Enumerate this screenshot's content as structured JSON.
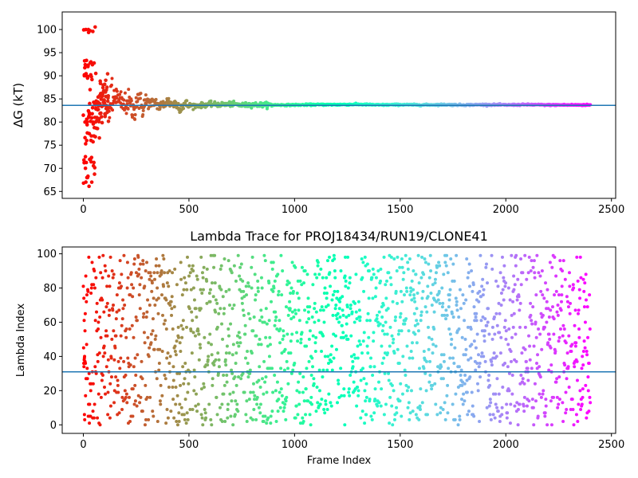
{
  "chart_data": [
    {
      "type": "scatter",
      "title": "",
      "xlabel": "",
      "ylabel": "ΔG (kT)",
      "xlim": [
        -100,
        2520
      ],
      "ylim": [
        63.5,
        103.8
      ],
      "xticks": [
        0,
        500,
        1000,
        1500,
        2000,
        2500
      ],
      "xtick_labels": [
        "0",
        "500",
        "1000",
        "1500",
        "2000",
        "2500"
      ],
      "yticks": [
        65,
        70,
        75,
        80,
        85,
        90,
        95,
        100
      ],
      "ytick_labels": [
        "65",
        "70",
        "75",
        "80",
        "85",
        "90",
        "95",
        "100"
      ],
      "grid": false,
      "colormap": "rainbow (red → violet with frame index)",
      "series": [
        {
          "x": [
            5,
            8,
            10,
            12,
            14,
            16,
            18,
            20,
            22,
            24,
            26,
            28,
            30,
            32,
            34,
            36,
            38,
            40,
            45,
            50,
            55,
            60,
            65,
            70,
            75,
            80,
            85,
            90,
            95,
            100,
            110,
            120,
            130,
            140,
            150,
            160,
            170,
            180,
            190,
            200,
            210,
            220,
            230,
            240,
            250,
            260,
            270,
            280,
            290,
            300,
            320,
            340,
            360,
            380,
            400,
            420,
            440,
            460,
            480,
            500,
            550,
            600,
            650,
            700,
            750,
            800,
            900,
            1000,
            1100,
            1200,
            1300,
            1400,
            1500,
            1600,
            1700,
            1800,
            1900,
            2000,
            2100,
            2200,
            2300,
            2400
          ],
          "values": [
            90,
            80,
            70,
            100,
            90,
            76,
            80,
            68,
            92,
            100,
            81,
            82,
            84,
            87,
            72,
            93,
            77,
            67,
            80,
            77,
            81,
            83,
            80,
            89,
            79,
            86,
            82,
            84,
            85,
            84,
            86,
            83,
            85,
            84,
            88,
            86,
            84,
            85,
            83,
            84,
            85,
            84,
            82,
            81,
            85,
            87,
            84,
            83,
            84,
            85,
            84,
            85,
            83,
            84,
            85,
            84,
            84,
            83,
            84,
            83.5,
            83.5,
            84,
            83.8,
            84,
            83.6,
            83.8,
            83.7,
            83.7,
            83.8,
            83.8,
            83.9,
            83.7,
            83.8,
            83.7,
            83.8,
            83.7,
            83.8,
            83.7,
            83.8,
            83.7,
            83.7,
            83.7
          ]
        }
      ],
      "hline": 83.6,
      "hline_color": "#1f77b4"
    },
    {
      "type": "scatter",
      "title": "Lambda Trace for PROJ18434/RUN19/CLONE41",
      "xlabel": "Frame Index",
      "ylabel": "Lambda Index",
      "xlim": [
        -100,
        2520
      ],
      "ylim": [
        -5,
        104
      ],
      "xticks": [
        0,
        500,
        1000,
        1500,
        2000,
        2500
      ],
      "xtick_labels": [
        "0",
        "500",
        "1000",
        "1500",
        "2000",
        "2500"
      ],
      "yticks": [
        0,
        20,
        40,
        60,
        80,
        100
      ],
      "ytick_labels": [
        "0",
        "20",
        "40",
        "60",
        "80",
        "100"
      ],
      "grid": false,
      "colormap": "rainbow (red → violet with frame index)",
      "series": [
        {
          "x": [
            0,
            2400
          ],
          "values": [
            0,
            99
          ],
          "distribution": "approximately uniform random over lambda 0–99 for frames 0–2400"
        }
      ],
      "hline": 31,
      "hline_color": "#1f77b4"
    }
  ]
}
